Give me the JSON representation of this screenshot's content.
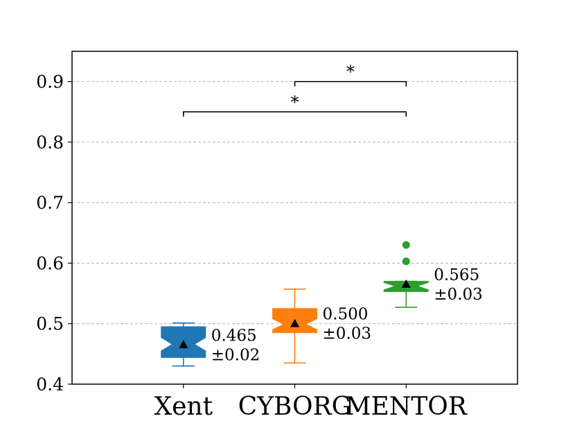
{
  "chart_data": {
    "type": "box",
    "categories": [
      "Xent",
      "CYBORG",
      "MENTOR"
    ],
    "ylim": [
      0.4,
      0.95
    ],
    "yticks": [
      "0.4",
      "0.5",
      "0.6",
      "0.7",
      "0.8",
      "0.9"
    ],
    "ytick_values": [
      0.4,
      0.5,
      0.6,
      0.7,
      0.8,
      0.9
    ],
    "grid": "horizontal-dashed",
    "series": [
      {
        "category": "Xent",
        "color": "#1f77b4",
        "whisker_low": 0.43,
        "q1": 0.444,
        "median": 0.466,
        "q3": 0.495,
        "whisker_high": 0.501,
        "notch_low": 0.455,
        "notch_high": 0.477,
        "mean": 0.465,
        "outliers": [],
        "annotation": [
          "0.465",
          "±0.02"
        ]
      },
      {
        "category": "CYBORG",
        "color": "#ff7f0e",
        "whisker_low": 0.435,
        "q1": 0.485,
        "median": 0.499,
        "q3": 0.525,
        "whisker_high": 0.557,
        "notch_low": 0.49,
        "notch_high": 0.508,
        "mean": 0.5,
        "outliers": [],
        "annotation": [
          "0.500",
          "±0.03"
        ]
      },
      {
        "category": "MENTOR",
        "color": "#2ca02c",
        "whisker_low": 0.527,
        "q1": 0.553,
        "median": 0.562,
        "q3": 0.57,
        "whisker_high": 0.57,
        "notch_low": 0.556,
        "notch_high": 0.568,
        "mean": 0.565,
        "outliers": [
          0.603,
          0.63
        ],
        "annotation": [
          "0.565",
          "±0.03"
        ]
      }
    ],
    "significance": [
      {
        "from": "CYBORG",
        "to": "MENTOR",
        "y": 0.9,
        "label": "*"
      },
      {
        "from": "Xent",
        "to": "MENTOR",
        "y": 0.85,
        "label": "*"
      }
    ]
  }
}
